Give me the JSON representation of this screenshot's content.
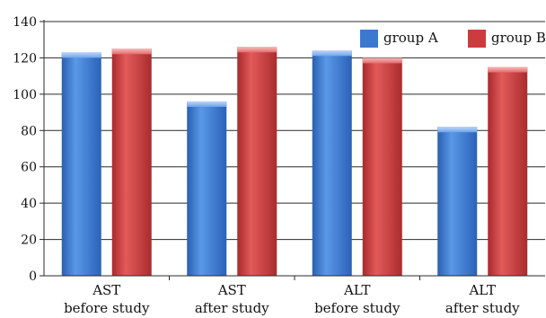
{
  "chart_data": {
    "type": "bar",
    "categories": [
      [
        "AST",
        "before study"
      ],
      [
        "AST",
        "after study"
      ],
      [
        "ALT",
        "before study"
      ],
      [
        "ALT",
        "after study"
      ]
    ],
    "series": [
      {
        "name": "group A",
        "values": [
          123,
          96,
          124,
          82
        ],
        "color": "#3b78d0"
      },
      {
        "name": "group B",
        "values": [
          125,
          126,
          120,
          115
        ],
        "color": "#cc3b3d"
      }
    ],
    "ylim": [
      0,
      140
    ],
    "yticks": [
      0,
      20,
      40,
      60,
      80,
      100,
      120,
      140
    ],
    "grid": true,
    "legend_position": "top-right"
  }
}
